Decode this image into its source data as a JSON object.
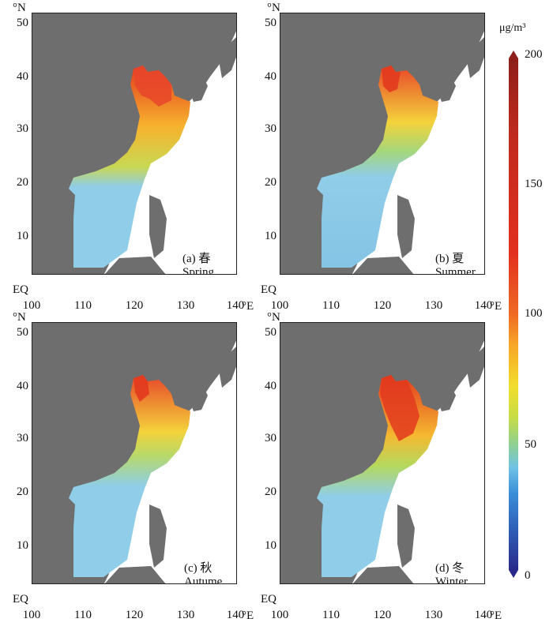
{
  "panels": [
    {
      "id": "a",
      "label_top": "(a) 春",
      "label_bottom": "Spring"
    },
    {
      "id": "b",
      "label_top": "(b) 夏",
      "label_bottom": "Summer"
    },
    {
      "id": "c",
      "label_top": "(c) 秋",
      "label_bottom": "Autume"
    },
    {
      "id": "d",
      "label_top": "(d) 冬",
      "label_bottom": "Winter"
    }
  ],
  "axes": {
    "y_unit": "°N",
    "x_unit": "°E",
    "y_ticks": [
      "EQ",
      "10",
      "20",
      "30",
      "40",
      "50"
    ],
    "x_ticks": [
      "100",
      "110",
      "120",
      "130",
      "140"
    ],
    "lon_range": [
      100,
      140
    ],
    "lat_range": [
      0,
      50
    ]
  },
  "colorbar": {
    "unit": "μg/m³",
    "ticks": [
      "0",
      "50",
      "100",
      "150",
      "200"
    ],
    "range": [
      0,
      200
    ]
  },
  "colors": {
    "land": "#6e6e6e",
    "sea_clean": "#8fcde8",
    "sea_mid": "#a8d46a",
    "high": "#f6c634",
    "max": "#d9341f"
  }
}
